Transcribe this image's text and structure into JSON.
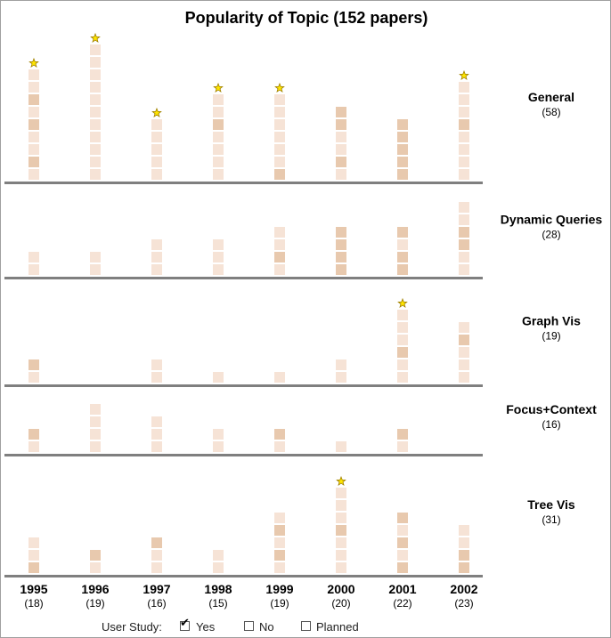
{
  "chart_data": {
    "type": "bar",
    "title": "Popularity of Topic (152 papers)",
    "categories": [
      "1995",
      "1996",
      "1997",
      "1998",
      "1999",
      "2000",
      "2001",
      "2002"
    ],
    "category_counts": [
      "(18)",
      "(19)",
      "(16)",
      "(15)",
      "(19)",
      "(20)",
      "(22)",
      "(23)"
    ],
    "series": [
      {
        "name": "General",
        "count": "(58)",
        "stacks": [
          [
            "p",
            "d",
            "p",
            "p",
            "d",
            "p",
            "d",
            "p",
            "p"
          ],
          [
            "p",
            "p",
            "p",
            "p",
            "p",
            "p",
            "p",
            "p",
            "p",
            "p",
            "p"
          ],
          [
            "p",
            "p",
            "p",
            "p",
            "p"
          ],
          [
            "p",
            "p",
            "p",
            "p",
            "d",
            "p",
            "p"
          ],
          [
            "d",
            "p",
            "p",
            "p",
            "p",
            "p",
            "p"
          ],
          [
            "p",
            "d",
            "p",
            "p",
            "d",
            "d"
          ],
          [
            "d",
            "d",
            "d",
            "d",
            "d"
          ],
          [
            "p",
            "p",
            "p",
            "p",
            "d",
            "p",
            "p",
            "p"
          ]
        ],
        "starred": [
          1,
          1,
          1,
          1,
          1,
          0,
          0,
          1
        ]
      },
      {
        "name": "Dynamic Queries",
        "count": "(28)",
        "stacks": [
          [
            "p",
            "p"
          ],
          [
            "p",
            "p"
          ],
          [
            "p",
            "p",
            "p"
          ],
          [
            "p",
            "p",
            "p"
          ],
          [
            "p",
            "d",
            "p",
            "p"
          ],
          [
            "d",
            "d",
            "d",
            "d"
          ],
          [
            "d",
            "d",
            "p",
            "d"
          ],
          [
            "p",
            "p",
            "d",
            "d",
            "p",
            "p"
          ]
        ],
        "starred": [
          0,
          0,
          0,
          0,
          0,
          0,
          0,
          0
        ]
      },
      {
        "name": "Graph Vis",
        "count": "(19)",
        "stacks": [
          [
            "p",
            "d"
          ],
          [],
          [
            "p",
            "p"
          ],
          [
            "p"
          ],
          [
            "p"
          ],
          [
            "p",
            "p"
          ],
          [
            "p",
            "p",
            "d",
            "p",
            "p",
            "p"
          ],
          [
            "p",
            "p",
            "p",
            "d",
            "p"
          ]
        ],
        "starred": [
          0,
          0,
          0,
          0,
          0,
          0,
          1,
          0
        ]
      },
      {
        "name": "Focus+Context",
        "count": "(16)",
        "stacks": [
          [
            "p",
            "d"
          ],
          [
            "p",
            "p",
            "p",
            "p"
          ],
          [
            "p",
            "p",
            "p"
          ],
          [
            "p",
            "p"
          ],
          [
            "p",
            "d"
          ],
          [
            "p"
          ],
          [
            "p",
            "d"
          ],
          []
        ],
        "starred": [
          0,
          0,
          0,
          0,
          0,
          0,
          0,
          0
        ]
      },
      {
        "name": "Tree Vis",
        "count": "(31)",
        "stacks": [
          [
            "d",
            "p",
            "p"
          ],
          [
            "p",
            "d"
          ],
          [
            "p",
            "p",
            "d"
          ],
          [
            "p",
            "p"
          ],
          [
            "p",
            "d",
            "p",
            "d",
            "p"
          ],
          [
            "p",
            "p",
            "p",
            "d",
            "p",
            "p",
            "p"
          ],
          [
            "d",
            "p",
            "d",
            "p",
            "d"
          ],
          [
            "d",
            "d",
            "p",
            "p"
          ]
        ],
        "starred": [
          0,
          0,
          0,
          0,
          0,
          1,
          0,
          0
        ]
      }
    ],
    "colors": {
      "pale_block": "#f6e3d6",
      "dark_block": "#e8c9ae",
      "baseline": "#7f7f7f",
      "star_fill": "#ffe600",
      "star_stroke": "#a08000"
    }
  },
  "legend": {
    "label": "User Study:",
    "items": [
      {
        "label": "Yes",
        "checked": true
      },
      {
        "label": "No",
        "checked": false
      },
      {
        "label": "Planned",
        "checked": false
      }
    ]
  }
}
